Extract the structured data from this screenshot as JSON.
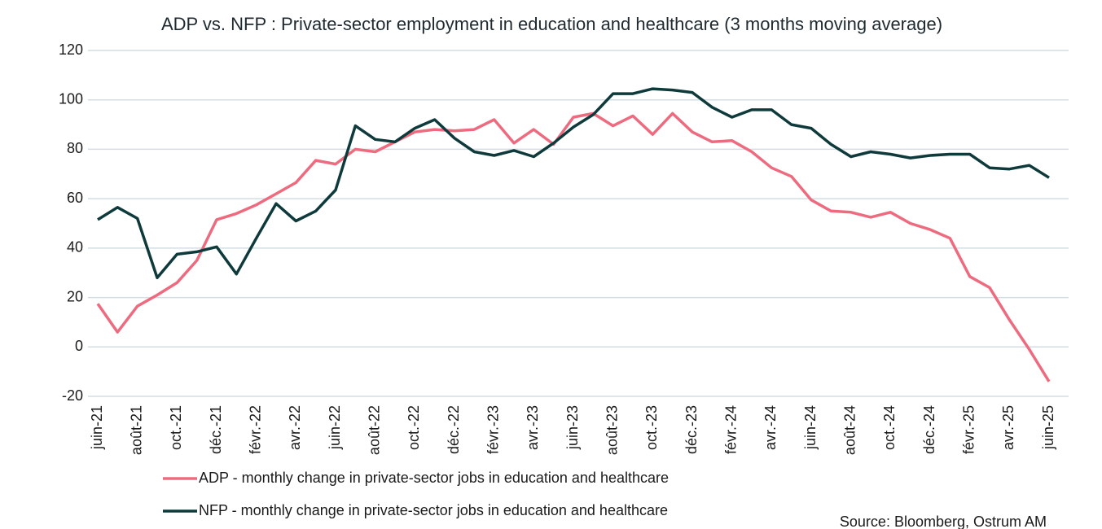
{
  "chart_data": {
    "type": "line",
    "title": "ADP vs. NFP : Private-sector employment in education and healthcare  (3 months moving average)",
    "source": "Source: Bloomberg, Ostrum AM",
    "categories": [
      "juin-21",
      null,
      "août-21",
      null,
      "oct.-21",
      null,
      "déc.-21",
      null,
      "févr.-22",
      null,
      "avr.-22",
      null,
      "juin-22",
      null,
      "août-22",
      null,
      "oct.-22",
      null,
      "déc.-22",
      null,
      "févr.-23",
      null,
      "avr.-23",
      null,
      "juin-23",
      null,
      "août-23",
      null,
      "oct.-23",
      null,
      "déc.-23",
      null,
      "févr.-24",
      null,
      "avr.-24",
      null,
      "juin-24",
      null,
      "août-24",
      null,
      "oct.-24",
      null,
      "déc.-24",
      null,
      "févr.-25",
      null,
      "avr.-25",
      null,
      "juin-25"
    ],
    "series": [
      {
        "name": "ADP - monthly change in private-sector jobs in education and healthcare",
        "color": "#ee6b7f",
        "values": [
          17.5,
          6,
          16.5,
          21,
          26,
          35,
          51.5,
          54,
          57.5,
          62,
          66.5,
          75.5,
          74,
          80,
          79,
          83,
          87,
          88,
          87.5,
          88,
          92,
          82.5,
          88,
          82,
          93,
          94.5,
          89.5,
          93.5,
          86,
          94.5,
          87,
          83,
          83.5,
          79,
          72.5,
          69,
          59.5,
          55,
          54.5,
          52.5,
          54.5,
          50,
          47.5,
          44,
          28.5,
          24,
          11,
          -1,
          -14
        ]
      },
      {
        "name": "NFP - monthly change in private-sector jobs in education and healthcare",
        "color": "#0f3a3c",
        "values": [
          51.5,
          56.5,
          52,
          28,
          37.5,
          38.5,
          40.5,
          29.5,
          44,
          58,
          51,
          55,
          63.5,
          89.5,
          84,
          83,
          88.5,
          92,
          84.5,
          79,
          77.5,
          79.5,
          77,
          82.5,
          89,
          94,
          102.5,
          102.5,
          104.5,
          104,
          103,
          97,
          93,
          96,
          96,
          90,
          88.5,
          82,
          77,
          79,
          78,
          76.5,
          77.5,
          78,
          78,
          72.5,
          72,
          73.5,
          68.5
        ]
      }
    ],
    "ylim": [
      -20,
      120
    ],
    "yticks": [
      -20,
      0,
      20,
      40,
      60,
      80,
      100,
      120
    ],
    "grid": true
  }
}
